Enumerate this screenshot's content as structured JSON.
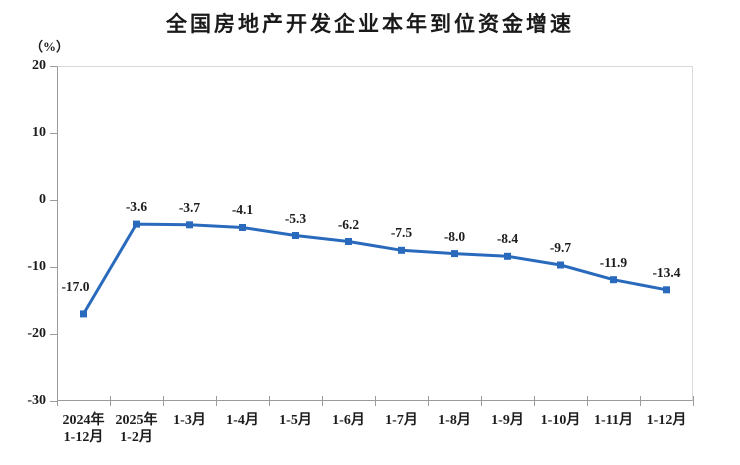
{
  "page": {
    "background_color": "#ffffff"
  },
  "chart_data": {
    "type": "line",
    "title": "全国房地产开发企业本年到位资金增速",
    "ylabel": "（%）",
    "xlabel": "",
    "categories": [
      "2024年\n1-12月",
      "2025年\n1-2月",
      "1-3月",
      "1-4月",
      "1-5月",
      "1-6月",
      "1-7月",
      "1-8月",
      "1-9月",
      "1-10月",
      "1-11月",
      "1-12月"
    ],
    "values": [
      -17.0,
      -3.6,
      -3.7,
      -4.1,
      -5.3,
      -6.2,
      -7.5,
      -8.0,
      -8.4,
      -9.7,
      -11.9,
      -13.4
    ],
    "data_labels": [
      "-17.0",
      "-3.6",
      "-3.7",
      "-4.1",
      "-5.3",
      "-6.2",
      "-7.5",
      "-8.0",
      "-8.4",
      "-9.7",
      "-11.9",
      "-13.4"
    ],
    "ylim": [
      -30,
      20
    ],
    "yticks": [
      20,
      10,
      0,
      -10,
      -20,
      -30
    ],
    "grid": false,
    "legend": "none",
    "line_color": "#2a6abd",
    "marker": "square",
    "axis_color": "#9b9b9b",
    "frame_color": "#d9d9d9",
    "text_color": "#1c1c1c"
  }
}
